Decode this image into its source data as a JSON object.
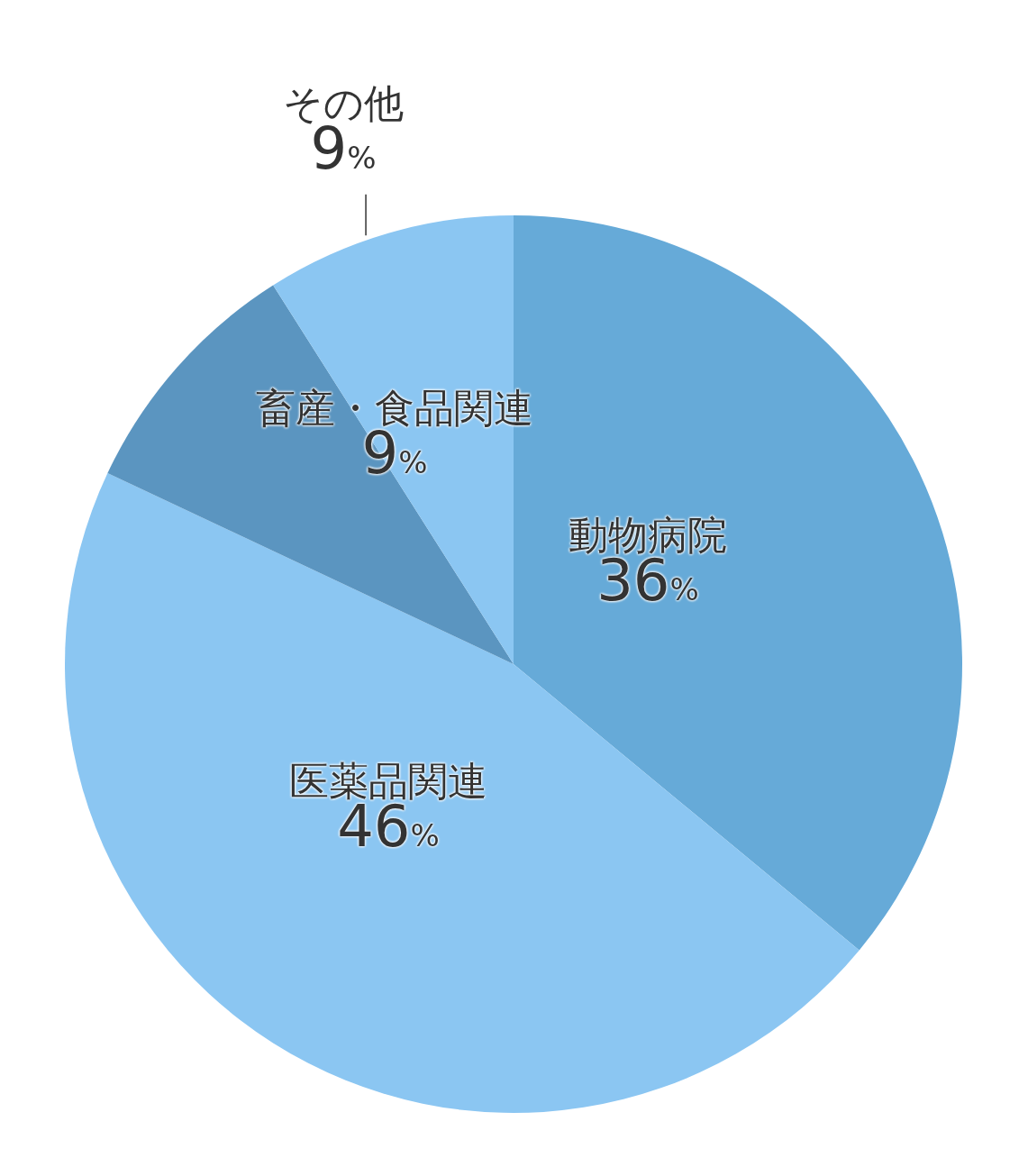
{
  "chart_data": {
    "type": "pie",
    "categories": [
      "動物病院",
      "医薬品関連",
      "畜産・食品関連",
      "その他"
    ],
    "values": [
      36,
      46,
      9,
      9
    ],
    "value_labels": [
      "36%",
      "46%",
      "9%",
      "9%"
    ],
    "colors": [
      "#66aad8",
      "#8bc6f2",
      "#5b95c0",
      "#8bc6f2"
    ],
    "legend": false
  }
}
